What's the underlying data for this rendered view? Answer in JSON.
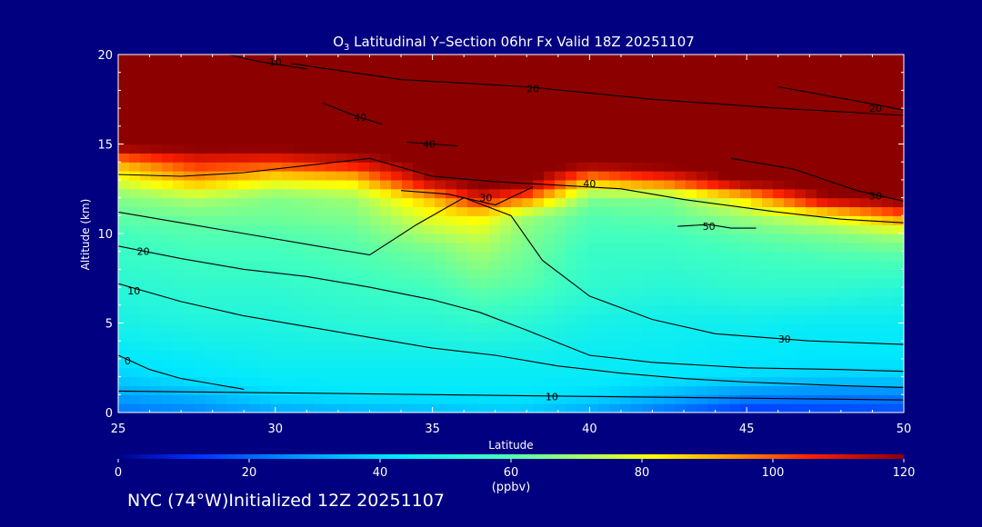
{
  "chart_data": {
    "type": "heatmap",
    "title_main": "O",
    "title_sub": "3",
    "title_rest": " Latitudinal Y–Section 06hr  Fx Valid 18Z 20251107",
    "xlabel": "Latitude",
    "ylabel": "Altitude (km)",
    "xlim": [
      25,
      50
    ],
    "ylim": [
      0,
      20
    ],
    "x_ticks": [
      25,
      30,
      35,
      40,
      45,
      50
    ],
    "y_ticks": [
      0,
      5,
      10,
      15,
      20
    ],
    "colorbar": {
      "min": 0,
      "max": 120,
      "ticks": [
        0,
        20,
        40,
        60,
        80,
        100,
        120
      ],
      "unit_label": "(ppbv)"
    },
    "field": {
      "lat": [
        25,
        27.5,
        30,
        32.5,
        35,
        36.5,
        38,
        40,
        42.5,
        45,
        47.5,
        50
      ],
      "alt": [
        0,
        1,
        2,
        3,
        5,
        7,
        9,
        10,
        11,
        12,
        13,
        14,
        15,
        16,
        18,
        20
      ],
      "values": [
        [
          22,
          24,
          30,
          32,
          34,
          36,
          36,
          30,
          20,
          12,
          14,
          16
        ],
        [
          30,
          34,
          40,
          42,
          42,
          42,
          42,
          40,
          34,
          26,
          24,
          24
        ],
        [
          38,
          42,
          44,
          44,
          44,
          44,
          44,
          44,
          42,
          40,
          38,
          38
        ],
        [
          42,
          44,
          46,
          46,
          46,
          46,
          46,
          44,
          44,
          42,
          42,
          42
        ],
        [
          48,
          50,
          50,
          52,
          52,
          54,
          52,
          48,
          46,
          46,
          44,
          44
        ],
        [
          52,
          54,
          54,
          56,
          58,
          62,
          60,
          54,
          52,
          54,
          54,
          52
        ],
        [
          56,
          58,
          58,
          60,
          64,
          70,
          64,
          56,
          56,
          58,
          60,
          62
        ],
        [
          58,
          60,
          60,
          62,
          72,
          76,
          66,
          58,
          58,
          62,
          66,
          72
        ],
        [
          62,
          64,
          64,
          66,
          80,
          84,
          70,
          60,
          62,
          70,
          80,
          98
        ],
        [
          66,
          72,
          66,
          70,
          90,
          110,
          98,
          66,
          66,
          86,
          118,
          124
        ],
        [
          78,
          92,
          82,
          86,
          118,
          124,
          124,
          90,
          104,
          124,
          124,
          124
        ],
        [
          92,
          106,
          104,
          112,
          124,
          124,
          124,
          124,
          124,
          124,
          124,
          124
        ],
        [
          124,
          124,
          124,
          124,
          124,
          124,
          124,
          124,
          124,
          124,
          124,
          124
        ],
        [
          124,
          124,
          124,
          124,
          124,
          124,
          124,
          124,
          124,
          124,
          124,
          124
        ],
        [
          124,
          124,
          124,
          124,
          124,
          124,
          124,
          124,
          124,
          124,
          124,
          124
        ],
        [
          124,
          124,
          124,
          124,
          124,
          124,
          124,
          124,
          124,
          124,
          124,
          124
        ]
      ]
    },
    "contours": [
      {
        "label": "0",
        "label_at": [
          25.3,
          2.9
        ],
        "points": [
          [
            25,
            3.2
          ],
          [
            26,
            2.4
          ],
          [
            27,
            1.9
          ],
          [
            28,
            1.6
          ],
          [
            29,
            1.3
          ]
        ]
      },
      {
        "label": "10",
        "label_at": [
          25.5,
          6.8
        ],
        "points": [
          [
            25,
            7.2
          ],
          [
            27,
            6.2
          ],
          [
            29,
            5.4
          ],
          [
            31,
            4.8
          ],
          [
            33,
            4.2
          ],
          [
            35,
            3.6
          ],
          [
            37,
            3.2
          ],
          [
            39,
            2.6
          ],
          [
            41,
            2.2
          ],
          [
            43,
            1.9
          ],
          [
            45,
            1.7
          ],
          [
            48,
            1.5
          ],
          [
            50,
            1.4
          ]
        ]
      },
      {
        "label": "10",
        "label_at": [
          38.8,
          0.9
        ],
        "points": [
          [
            25,
            1.2
          ],
          [
            30,
            1.1
          ],
          [
            35,
            1.0
          ],
          [
            40,
            0.9
          ],
          [
            45,
            0.8
          ],
          [
            50,
            0.7
          ]
        ]
      },
      {
        "label": "20",
        "label_at": [
          25.8,
          9.0
        ],
        "points": [
          [
            25,
            9.3
          ],
          [
            27,
            8.6
          ],
          [
            29,
            8.0
          ],
          [
            31,
            7.6
          ],
          [
            33,
            7.0
          ],
          [
            35,
            6.3
          ],
          [
            36.5,
            5.6
          ],
          [
            38,
            4.6
          ],
          [
            39,
            3.9
          ],
          [
            40,
            3.2
          ],
          [
            42,
            2.8
          ],
          [
            45,
            2.5
          ],
          [
            48,
            2.4
          ],
          [
            50,
            2.3
          ]
        ]
      },
      {
        "label": "30",
        "label_at": [
          46.2,
          4.1
        ],
        "points": [
          [
            25,
            11.2
          ],
          [
            27,
            10.6
          ],
          [
            29,
            10.0
          ],
          [
            31,
            9.4
          ],
          [
            33,
            8.8
          ],
          [
            34.5,
            10.5
          ],
          [
            36,
            12.0
          ],
          [
            37.5,
            11.0
          ],
          [
            38.5,
            8.5
          ],
          [
            40,
            6.5
          ],
          [
            42,
            5.2
          ],
          [
            44,
            4.4
          ],
          [
            47,
            4.0
          ],
          [
            50,
            3.8
          ]
        ]
      },
      {
        "label": "30",
        "label_at": [
          36.7,
          12.0
        ],
        "points": [
          [
            34,
            12.4
          ],
          [
            35.5,
            12.2
          ],
          [
            37,
            11.6
          ],
          [
            38.2,
            12.6
          ]
        ]
      },
      {
        "label": "40",
        "label_at": [
          40,
          12.8
        ],
        "points": [
          [
            25,
            13.3
          ],
          [
            27,
            13.2
          ],
          [
            29,
            13.4
          ],
          [
            31,
            13.8
          ],
          [
            33,
            14.2
          ],
          [
            35,
            13.2
          ],
          [
            37,
            12.9
          ],
          [
            39,
            12.7
          ],
          [
            41,
            12.5
          ],
          [
            43,
            11.9
          ],
          [
            46,
            11.2
          ],
          [
            48,
            10.8
          ],
          [
            50,
            10.6
          ]
        ]
      },
      {
        "label": "50",
        "label_at": [
          43.8,
          10.4
        ],
        "points": [
          [
            42.8,
            10.4
          ],
          [
            43.8,
            10.5
          ],
          [
            44.5,
            10.3
          ],
          [
            45.3,
            10.3
          ]
        ]
      },
      {
        "label": "40",
        "label_at": [
          34.9,
          15.0
        ],
        "points": [
          [
            34.2,
            15.1
          ],
          [
            35,
            15.0
          ],
          [
            35.8,
            14.9
          ]
        ]
      },
      {
        "label": "40",
        "label_at": [
          32.7,
          16.5
        ],
        "points": [
          [
            31.5,
            17.3
          ],
          [
            32.5,
            16.6
          ],
          [
            33.4,
            16.1
          ]
        ]
      },
      {
        "label": "20",
        "label_at": [
          38.2,
          18.1
        ],
        "points": [
          [
            30.5,
            19.5
          ],
          [
            34,
            18.6
          ],
          [
            38,
            18.2
          ],
          [
            42,
            17.5
          ],
          [
            46,
            17.0
          ],
          [
            48,
            16.8
          ],
          [
            50,
            16.6
          ]
        ]
      },
      {
        "label": "10",
        "label_at": [
          30,
          19.6
        ],
        "points": [
          [
            28.5,
            20
          ],
          [
            29.5,
            19.6
          ],
          [
            31,
            19.2
          ]
        ]
      },
      {
        "label": "30",
        "label_at": [
          49.1,
          12.1
        ],
        "points": [
          [
            44.5,
            14.2
          ],
          [
            46.5,
            13.6
          ],
          [
            48.5,
            12.4
          ],
          [
            50,
            11.8
          ]
        ]
      },
      {
        "label": "20",
        "label_at": [
          49.1,
          17.0
        ],
        "points": [
          [
            46,
            18.2
          ],
          [
            48.5,
            17.4
          ],
          [
            50,
            16.9
          ]
        ]
      }
    ]
  },
  "footer": {
    "caption": "NYC (74°W)Initialized 12Z 20251107"
  }
}
